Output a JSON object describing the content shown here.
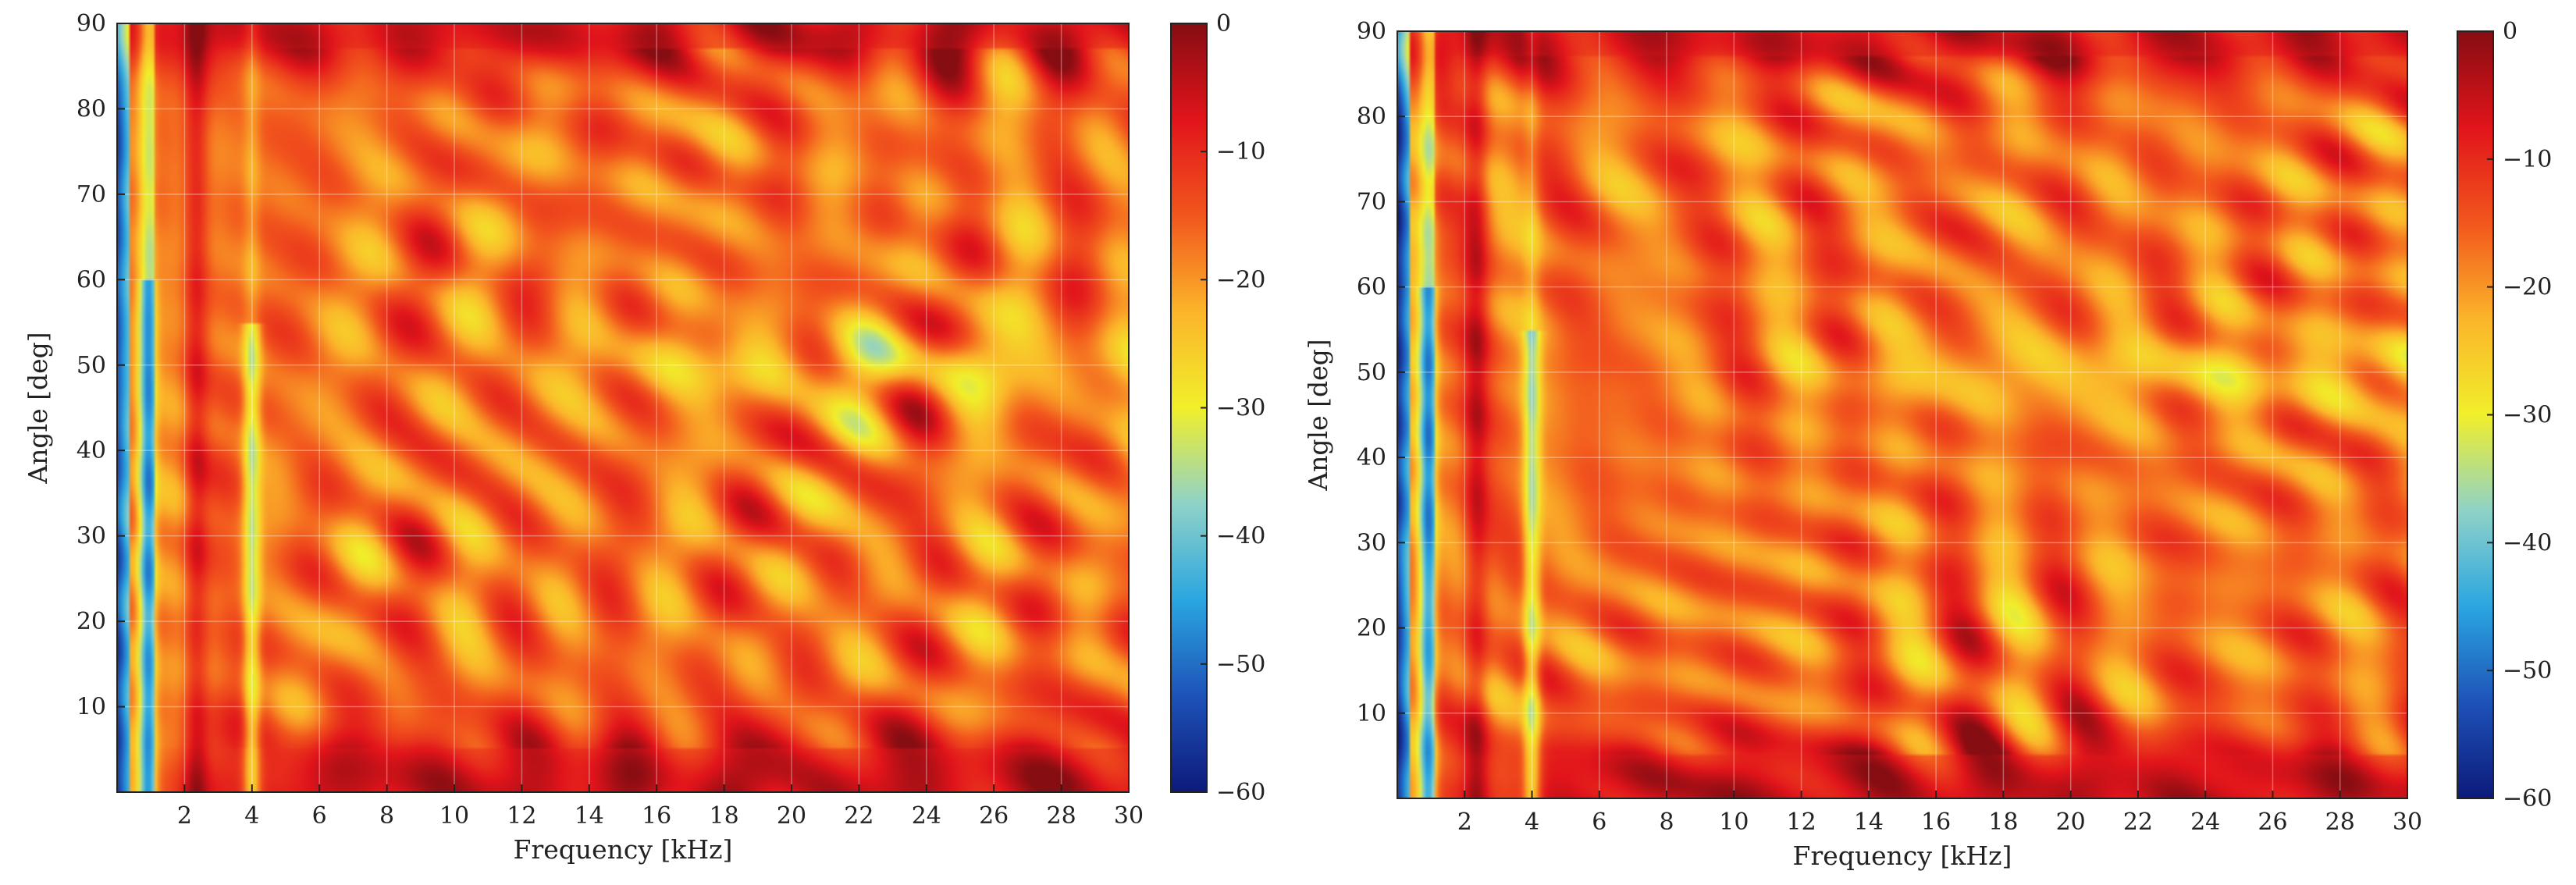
{
  "chart_data": [
    {
      "type": "heatmap",
      "panel": "left",
      "xlabel": "Frequency [kHz]",
      "ylabel": "Angle [deg]",
      "xlim": [
        0,
        30
      ],
      "ylim": [
        0,
        90
      ],
      "x_ticks": [
        "2",
        "4",
        "6",
        "8",
        "10",
        "12",
        "14",
        "16",
        "18",
        "20",
        "22",
        "24",
        "26",
        "28",
        "30"
      ],
      "y_ticks": [
        "10",
        "20",
        "30",
        "40",
        "50",
        "60",
        "70",
        "80",
        "90"
      ],
      "x_tick_values": [
        2,
        4,
        6,
        8,
        10,
        12,
        14,
        16,
        18,
        20,
        22,
        24,
        26,
        28,
        30
      ],
      "y_tick_values": [
        10,
        20,
        30,
        40,
        50,
        60,
        70,
        80,
        90
      ],
      "grid": true,
      "colorbar": {
        "range": [
          -60,
          0
        ],
        "ticks": [
          "0",
          "−10",
          "−20",
          "−30",
          "−40",
          "−50",
          "−60"
        ],
        "tick_values": [
          0,
          -10,
          -20,
          -30,
          -40,
          -50,
          -60
        ],
        "colormap": [
          "#0c1a7a",
          "#1e52b8",
          "#2aa6e0",
          "#8fd2c8",
          "#f1ef2a",
          "#fbb52a",
          "#f2561d",
          "#e1141b",
          "#860d12"
        ]
      }
    },
    {
      "type": "heatmap",
      "panel": "right",
      "xlabel": "Frequency [kHz]",
      "ylabel": "Angle [deg]",
      "xlim": [
        0,
        30
      ],
      "ylim": [
        0,
        90
      ],
      "x_ticks": [
        "2",
        "4",
        "6",
        "8",
        "10",
        "12",
        "14",
        "16",
        "18",
        "20",
        "22",
        "24",
        "26",
        "28",
        "30"
      ],
      "y_ticks": [
        "10",
        "20",
        "30",
        "40",
        "50",
        "60",
        "70",
        "80",
        "90"
      ],
      "x_tick_values": [
        2,
        4,
        6,
        8,
        10,
        12,
        14,
        16,
        18,
        20,
        22,
        24,
        26,
        28,
        30
      ],
      "y_tick_values": [
        10,
        20,
        30,
        40,
        50,
        60,
        70,
        80,
        90
      ],
      "grid": true,
      "colorbar": {
        "range": [
          -60,
          0
        ],
        "ticks": [
          "0",
          "−10",
          "−20",
          "−30",
          "−40",
          "−50",
          "−60"
        ],
        "tick_values": [
          0,
          -10,
          -20,
          -30,
          -40,
          -50,
          -60
        ],
        "colormap": [
          "#0c1a7a",
          "#1e52b8",
          "#2aa6e0",
          "#8fd2c8",
          "#f1ef2a",
          "#fbb52a",
          "#f2561d",
          "#e1141b",
          "#860d12"
        ]
      }
    }
  ]
}
